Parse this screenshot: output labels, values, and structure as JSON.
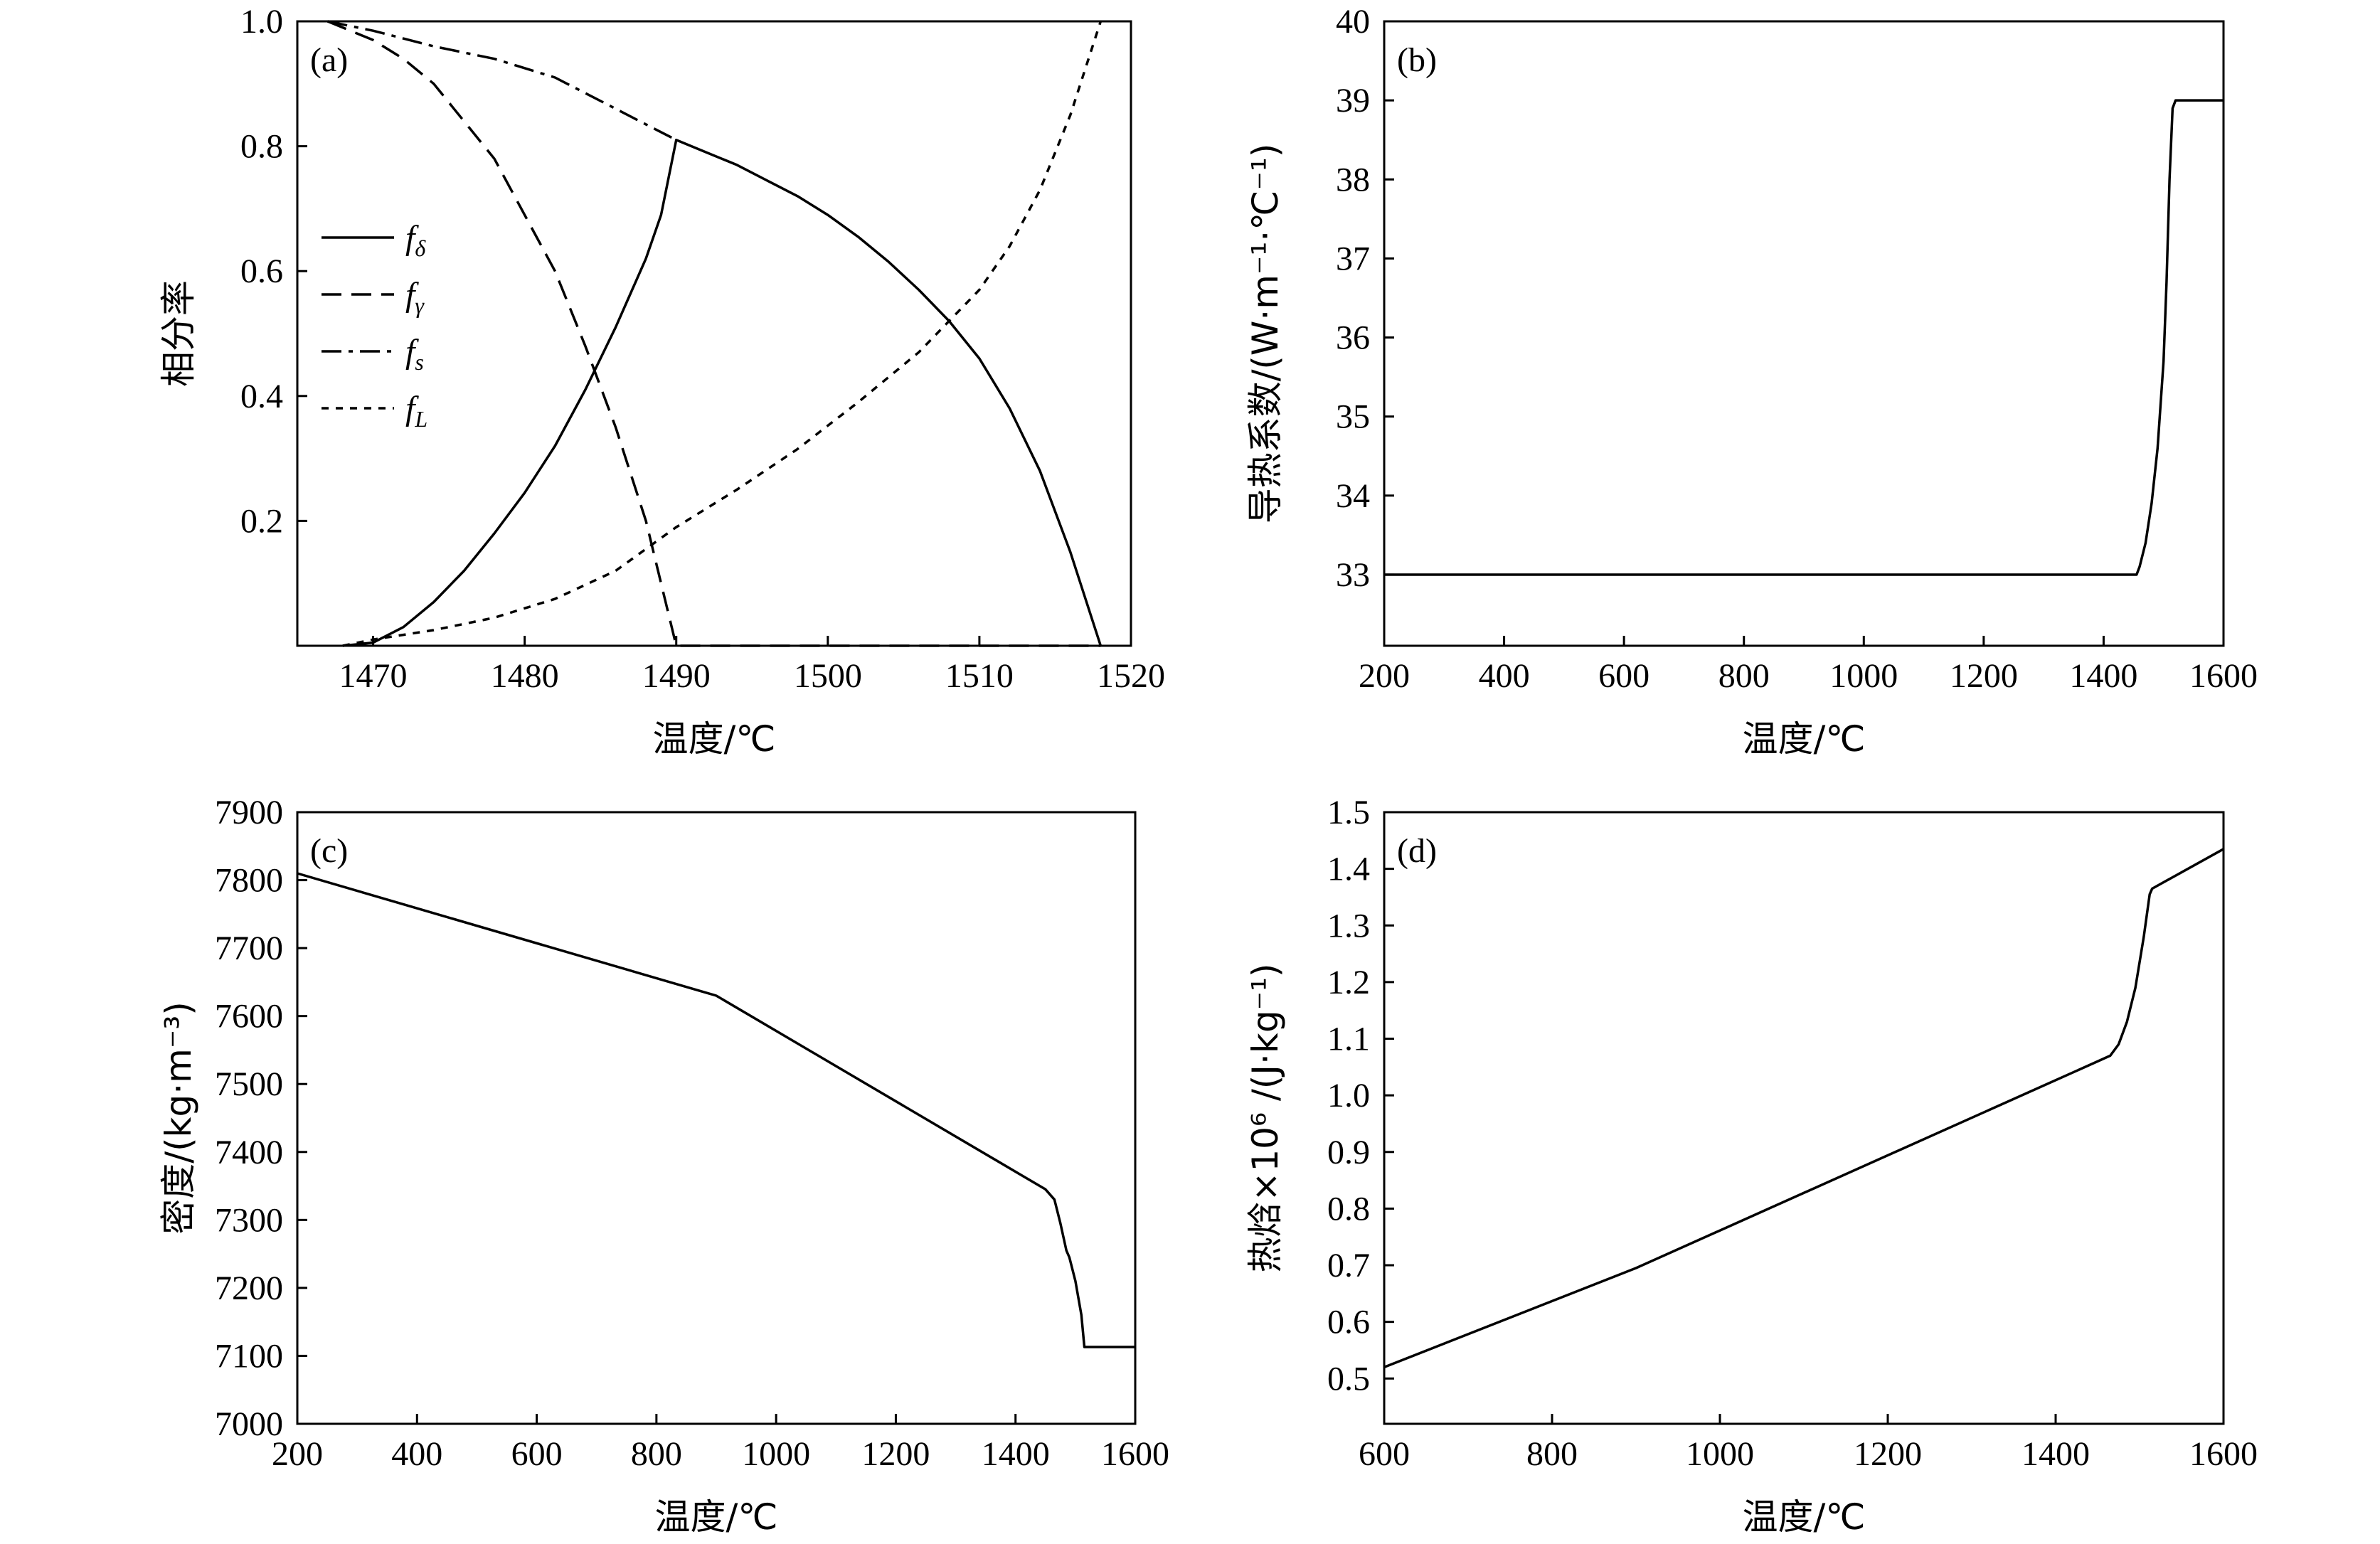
{
  "chart_data": [
    {
      "type": "line",
      "panel": "(a)",
      "xlabel": "温度/℃",
      "ylabel": "相分率",
      "xlim": [
        1465,
        1520
      ],
      "ylim": [
        0,
        1.0
      ],
      "xticks": [
        1470,
        1480,
        1490,
        1500,
        1510,
        1520
      ],
      "yticks": [
        0.2,
        0.4,
        0.6,
        0.8,
        1.0
      ],
      "yticklabels": [
        "0.2",
        "0.4",
        "0.6",
        "0.8",
        "1.0"
      ],
      "legend_position": "left",
      "series": [
        {
          "name": "f",
          "sub": "δ",
          "dash": "",
          "x": [
            1468,
            1470,
            1472,
            1474,
            1476,
            1478,
            1480,
            1482,
            1484,
            1486,
            1488,
            1489,
            1490,
            1492,
            1494,
            1496,
            1498,
            1500,
            1502,
            1504,
            1506,
            1508,
            1510,
            1512,
            1514,
            1516,
            1518
          ],
          "y": [
            0.0,
            0.005,
            0.03,
            0.07,
            0.12,
            0.18,
            0.245,
            0.32,
            0.41,
            0.51,
            0.62,
            0.69,
            0.81,
            0.79,
            0.77,
            0.745,
            0.72,
            0.69,
            0.655,
            0.615,
            0.57,
            0.52,
            0.46,
            0.38,
            0.28,
            0.15,
            0.0
          ]
        },
        {
          "name": "f",
          "sub": "γ",
          "dash": "28 14",
          "x": [
            1467,
            1470,
            1472,
            1474,
            1476,
            1478,
            1480,
            1482,
            1484,
            1486,
            1488,
            1489,
            1490,
            1500,
            1510,
            1518
          ],
          "y": [
            1.0,
            0.97,
            0.94,
            0.9,
            0.84,
            0.78,
            0.69,
            0.6,
            0.48,
            0.35,
            0.2,
            0.1,
            0.0,
            0.0,
            0.0,
            0.0
          ]
        },
        {
          "name": "f",
          "sub": "s",
          "dash": "28 10 6 10",
          "x": [
            1467,
            1470,
            1474,
            1478,
            1482,
            1486,
            1488,
            1490
          ],
          "y": [
            1.0,
            0.985,
            0.96,
            0.94,
            0.91,
            0.86,
            0.835,
            0.81
          ]
        },
        {
          "name": "f",
          "sub": "L",
          "dash": "10 10",
          "x": [
            1468,
            1470,
            1474,
            1478,
            1482,
            1486,
            1490,
            1494,
            1498,
            1502,
            1506,
            1510,
            1512,
            1514,
            1516,
            1518
          ],
          "y": [
            0.0,
            0.01,
            0.025,
            0.045,
            0.075,
            0.12,
            0.19,
            0.25,
            0.315,
            0.39,
            0.47,
            0.57,
            0.64,
            0.73,
            0.85,
            1.0
          ]
        }
      ]
    },
    {
      "type": "line",
      "panel": "(b)",
      "xlabel": "温度/℃",
      "ylabel": "导热系数/(W·m⁻¹·℃⁻¹)",
      "xlim": [
        200,
        1600
      ],
      "ylim": [
        32.1,
        40
      ],
      "xticks": [
        200,
        400,
        600,
        800,
        1000,
        1200,
        1400,
        1600
      ],
      "yticks": [
        33,
        34,
        35,
        36,
        37,
        38,
        39,
        40
      ],
      "yticklabels": [
        "33",
        "34",
        "35",
        "36",
        "37",
        "38",
        "39",
        "40"
      ],
      "series": [
        {
          "name": "",
          "dash": "",
          "x": [
            200,
            1400,
            1455,
            1460,
            1470,
            1480,
            1490,
            1500,
            1505,
            1510,
            1515,
            1520,
            1600
          ],
          "y": [
            33.0,
            33.0,
            33.0,
            33.1,
            33.4,
            33.9,
            34.6,
            35.7,
            36.7,
            38.0,
            38.9,
            39.0,
            39.0
          ]
        }
      ]
    },
    {
      "type": "line",
      "panel": "(c)",
      "xlabel": "温度/℃",
      "ylabel": "密度/(kg·m⁻³)",
      "xlim": [
        200,
        1600
      ],
      "ylim": [
        7000,
        7900
      ],
      "xticks": [
        200,
        400,
        600,
        800,
        1000,
        1200,
        1400,
        1600
      ],
      "yticks": [
        7000,
        7100,
        7200,
        7300,
        7400,
        7500,
        7600,
        7700,
        7800,
        7900
      ],
      "yticklabels": [
        "7000",
        "7100",
        "7200",
        "7300",
        "7400",
        "7500",
        "7600",
        "7700",
        "7800",
        "7900"
      ],
      "series": [
        {
          "name": "",
          "dash": "",
          "x": [
            200,
            900,
            1450,
            1465,
            1475,
            1485,
            1490,
            1500,
            1510,
            1515,
            1520,
            1600
          ],
          "y": [
            7810,
            7630,
            7345,
            7330,
            7295,
            7255,
            7245,
            7210,
            7160,
            7113,
            7113,
            7113
          ]
        }
      ]
    },
    {
      "type": "line",
      "panel": "(d)",
      "xlabel": "温度/℃",
      "ylabel": "热焓×10⁶ /(J·kg⁻¹)",
      "xlim": [
        600,
        1600
      ],
      "ylim": [
        0.42,
        1.5
      ],
      "xticks": [
        600,
        800,
        1000,
        1200,
        1400,
        1600
      ],
      "yticks": [
        0.5,
        0.6,
        0.7,
        0.8,
        0.9,
        1.0,
        1.1,
        1.2,
        1.3,
        1.4,
        1.5
      ],
      "yticklabels": [
        "0.5",
        "0.6",
        "0.7",
        "0.8",
        "0.9",
        "1.0",
        "1.1",
        "1.2",
        "1.3",
        "1.4",
        "1.5"
      ],
      "series": [
        {
          "name": "",
          "dash": "",
          "x": [
            600,
            900,
            1450,
            1465,
            1475,
            1485,
            1495,
            1505,
            1512,
            1515,
            1600
          ],
          "y": [
            0.52,
            0.695,
            1.06,
            1.07,
            1.09,
            1.13,
            1.19,
            1.28,
            1.355,
            1.365,
            1.435
          ]
        }
      ]
    }
  ]
}
